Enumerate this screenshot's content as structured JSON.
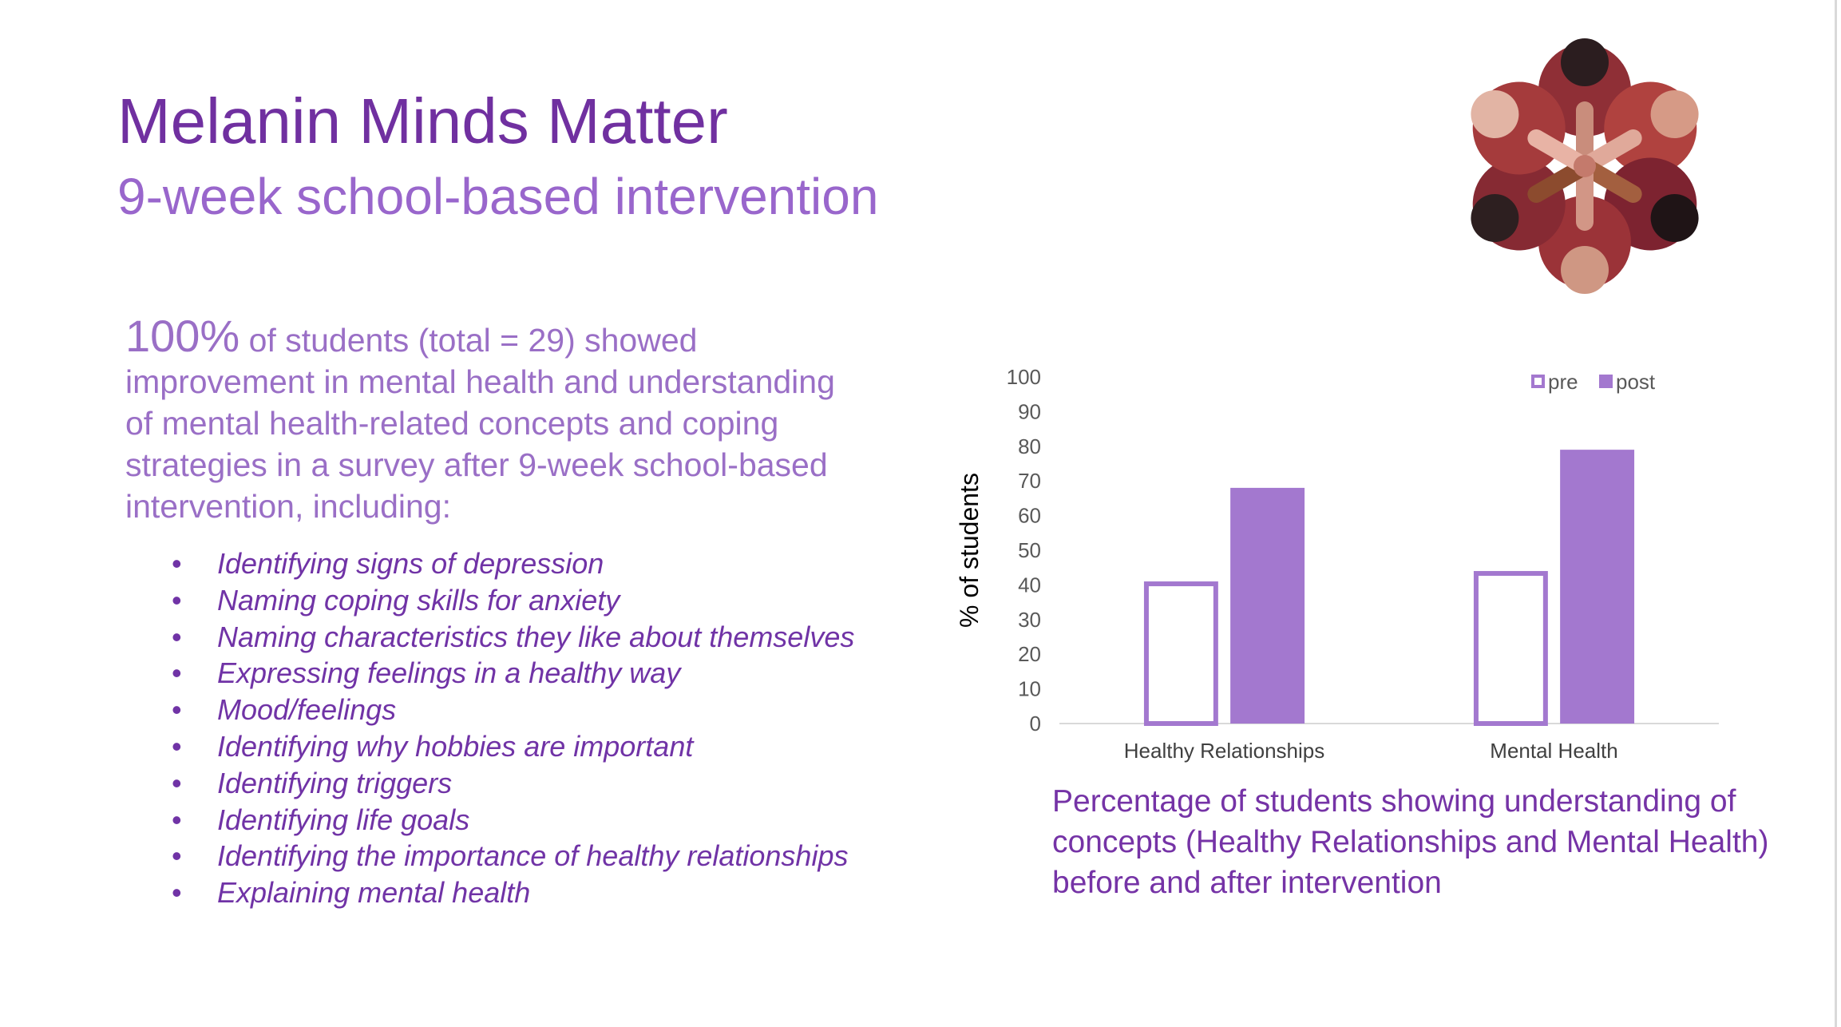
{
  "slide": {
    "title": "Melanin Minds Matter",
    "subtitle": "9-week school-based intervention",
    "stat_highlight": "100%",
    "stat_text": " of students (total = 29) showed improvement in mental health and understanding of mental health-related concepts and coping strategies in a survey after 9-week school-based intervention, including:",
    "bullets": [
      "Identifying signs of depression",
      "Naming coping skills for anxiety",
      "Naming characteristics they like about themselves",
      "Expressing feelings in a healthy way",
      "Mood/feelings",
      "Identifying why hobbies are important",
      "Identifying triggers",
      "Identifying life goals",
      "Identifying the importance of healthy relationships",
      "Explaining mental health"
    ],
    "caption": "Percentage of students showing understanding of concepts (Healthy Relationships and Mental Health) before and after intervention",
    "logo_icon": "people-circle-illustration-icon"
  },
  "colors": {
    "title": "#7030a0",
    "subtitle": "#9966cc",
    "body": "#9a6fc6",
    "bullets": "#7033a6",
    "caption": "#7533a6",
    "accent": "#a378cf"
  },
  "chart_data": {
    "type": "bar",
    "categories": [
      "Healthy Relationships",
      "Mental Health"
    ],
    "series": [
      {
        "name": "pre",
        "values": [
          41,
          44
        ],
        "style": "outline"
      },
      {
        "name": "post",
        "values": [
          68,
          79
        ],
        "style": "filled"
      }
    ],
    "ylabel": "% of students",
    "ylim": [
      0,
      100
    ],
    "yticks": [
      "0",
      "10",
      "20",
      "30",
      "40",
      "50",
      "60",
      "70",
      "80",
      "90",
      "100"
    ],
    "grid": false,
    "legend_position": "top-right"
  }
}
